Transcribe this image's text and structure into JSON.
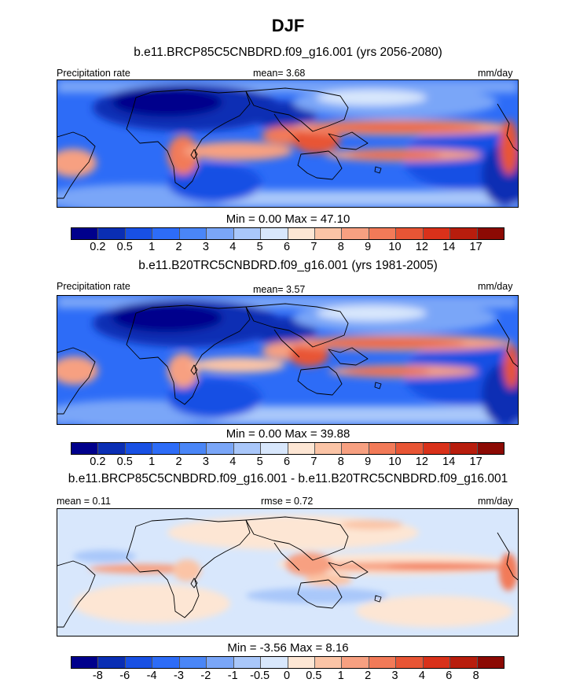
{
  "title": "DJF",
  "panels": [
    {
      "id": "future",
      "title": "b.e11.BRCP85C5CNBDRD.f09_g16.001 (yrs 2056-2080)",
      "left_label": "Precipitation rate",
      "center_label": "mean=   3.68",
      "right_label": "mm/day",
      "minmax": "Min =   0.00 Max =  47.10"
    },
    {
      "id": "historical",
      "title": "b.e11.B20TRC5CNBDRD.f09_g16.001 (yrs 1981-2005)",
      "left_label": "Precipitation rate",
      "center_label": "mean=   3.57",
      "right_label": "mm/day",
      "minmax": "Min =   0.00 Max =  39.88"
    },
    {
      "id": "difference",
      "title": "b.e11.BRCP85C5CNBDRD.f09_g16.001 - b.e11.B20TRC5CNBDRD.f09_g16.001",
      "left_label": "mean =   0.11",
      "center_label": "rmse =   0.72",
      "right_label": "mm/day",
      "minmax": "Min =  -3.56 Max =   8.16"
    }
  ],
  "colorbar_levels": {
    "precip": [
      "0.2",
      "0.5",
      "1",
      "2",
      "3",
      "4",
      "5",
      "6",
      "7",
      "8",
      "9",
      "10",
      "12",
      "14",
      "17"
    ],
    "diff": [
      "-8",
      "-6",
      "-4",
      "-3",
      "-2",
      "-1",
      "-0.5",
      "0",
      "0.5",
      "1",
      "2",
      "3",
      "4",
      "6",
      "8"
    ]
  },
  "colors": {
    "palette": [
      "#00008c",
      "#0a2eb4",
      "#1850e4",
      "#2d6cf7",
      "#4a86f7",
      "#7aa6f8",
      "#a9c7fa",
      "#d8e7fc",
      "#fde6d4",
      "#fbc4a6",
      "#f7a081",
      "#f27a58",
      "#e85535",
      "#d9311a",
      "#b81d0d",
      "#8c0a04"
    ]
  }
}
